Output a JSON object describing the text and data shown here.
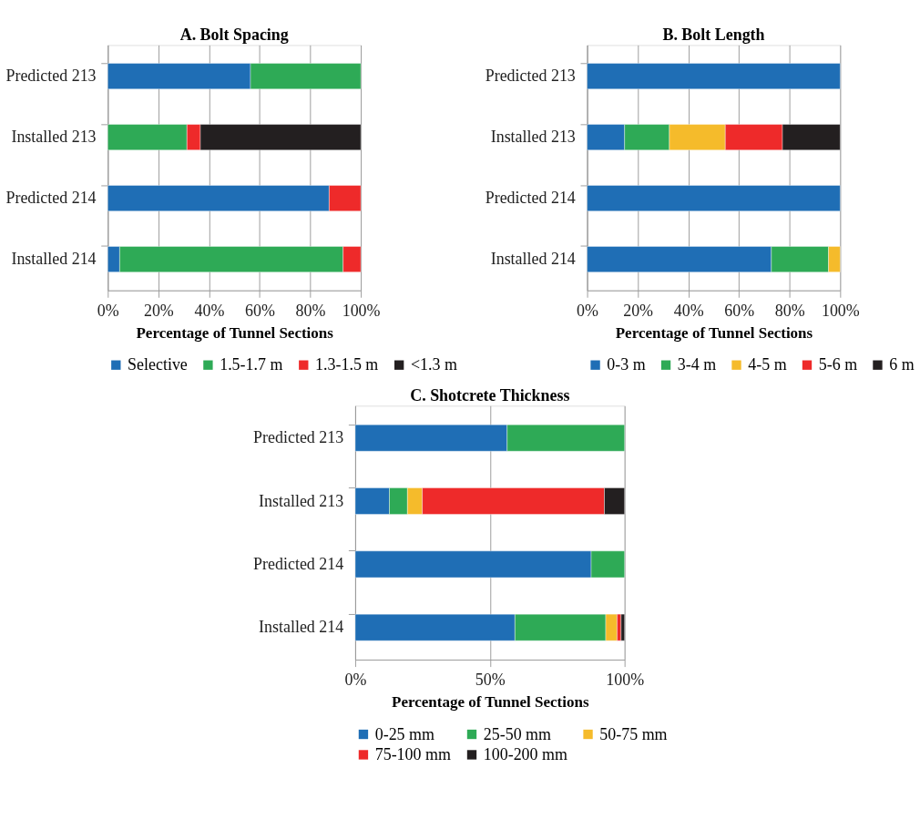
{
  "chart_data": [
    {
      "type": "bar",
      "title": "A. Bolt Spacing",
      "orientation": "horizontal",
      "stacked": true,
      "xlabel": "Percentage of Tunnel Sections",
      "categories": [
        "Predicted 213",
        "Installed 213",
        "Predicted 214",
        "Installed 214"
      ],
      "series": [
        {
          "name": "Selective",
          "color": "#1f6eb5",
          "values": [
            56.4,
            null,
            87.5,
            4.7
          ]
        },
        {
          "name": "1.5-1.7 m",
          "color": "#2eaa56",
          "values": [
            43.6,
            31.3,
            null,
            88.3
          ]
        },
        {
          "name": "1.3-1.5 m",
          "color": "#ee2a2a",
          "values": [
            null,
            5.3,
            12.5,
            7.0
          ]
        },
        {
          "name": "<1.3 m",
          "color": "#231f20",
          "values": [
            null,
            63.4,
            null,
            null
          ]
        }
      ],
      "xlim": [
        0,
        100
      ],
      "xticks": [
        {
          "value": 0,
          "label": "0%"
        },
        {
          "value": 20,
          "label": "20%"
        },
        {
          "value": 40,
          "label": "40%"
        },
        {
          "value": 60,
          "label": "60%"
        },
        {
          "value": 80,
          "label": "80%"
        },
        {
          "value": 100,
          "label": "100%"
        }
      ],
      "grid": "x",
      "legend": "bottom"
    },
    {
      "type": "bar",
      "title": "B. Bolt Length",
      "orientation": "horizontal",
      "stacked": true,
      "xlabel": "Percentage of Tunnel Sections",
      "categories": [
        "Predicted 213",
        "Installed 213",
        "Predicted 214",
        "Installed 214"
      ],
      "series": [
        {
          "name": "0-3 m",
          "color": "#1f6eb5",
          "values": [
            100,
            14.8,
            100,
            72.8
          ]
        },
        {
          "name": "3-4 m",
          "color": "#2eaa56",
          "values": [
            null,
            17.7,
            null,
            22.6
          ]
        },
        {
          "name": "4-5 m",
          "color": "#f5bb2b",
          "values": [
            null,
            22.1,
            null,
            4.6
          ]
        },
        {
          "name": "5-6 m",
          "color": "#ee2a2a",
          "values": [
            null,
            22.6,
            null,
            null
          ]
        },
        {
          "name": "6 m",
          "color": "#231f20",
          "values": [
            null,
            22.8,
            null,
            null
          ]
        }
      ],
      "xlim": [
        0,
        100
      ],
      "xticks": [
        {
          "value": 0,
          "label": "0%"
        },
        {
          "value": 20,
          "label": "20%"
        },
        {
          "value": 40,
          "label": "40%"
        },
        {
          "value": 60,
          "label": "60%"
        },
        {
          "value": 80,
          "label": "80%"
        },
        {
          "value": 100,
          "label": "100%"
        }
      ],
      "grid": "x",
      "legend": "bottom"
    },
    {
      "type": "bar",
      "title": "C. Shotcrete Thickness",
      "orientation": "horizontal",
      "stacked": true,
      "xlabel": "Percentage of Tunnel Sections",
      "categories": [
        "Predicted 213",
        "Installed 213",
        "Predicted 214",
        "Installed 214"
      ],
      "series": [
        {
          "name": "0-25 mm",
          "color": "#1f6eb5",
          "values": [
            56.4,
            12.7,
            87.6,
            59.3
          ]
        },
        {
          "name": "25-50 mm",
          "color": "#2eaa56",
          "values": [
            43.6,
            6.7,
            12.4,
            33.7
          ]
        },
        {
          "name": "50-75 mm",
          "color": "#f5bb2b",
          "values": [
            null,
            5.5,
            null,
            4.2
          ]
        },
        {
          "name": "75-100 mm",
          "color": "#ee2a2a",
          "values": [
            null,
            67.6,
            null,
            1.5
          ]
        },
        {
          "name": "100-200 mm",
          "color": "#231f20",
          "values": [
            null,
            7.5,
            null,
            1.3
          ]
        }
      ],
      "xlim": [
        0,
        100
      ],
      "xticks": [
        {
          "value": 0,
          "label": "0%"
        },
        {
          "value": 50,
          "label": "50%"
        },
        {
          "value": 100,
          "label": "100%"
        }
      ],
      "grid": "x",
      "legend": "bottom"
    }
  ]
}
